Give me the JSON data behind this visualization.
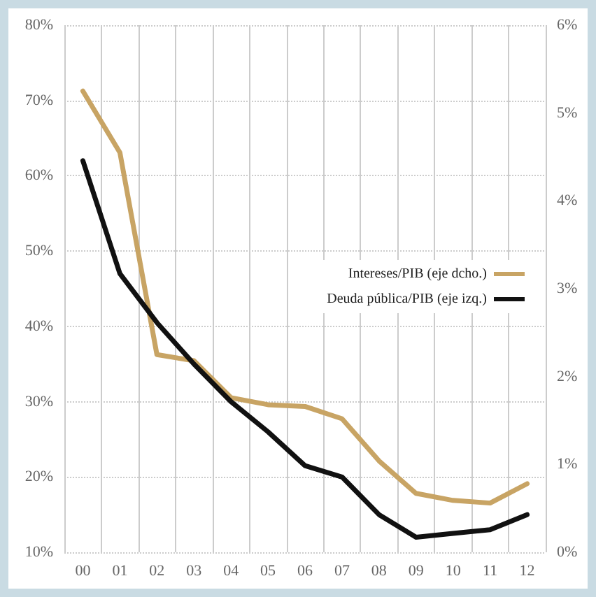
{
  "chart_data": {
    "type": "line",
    "categories": [
      "00",
      "01",
      "02",
      "03",
      "04",
      "05",
      "06",
      "07",
      "08",
      "09",
      "10",
      "11",
      "12"
    ],
    "series": [
      {
        "name": "Intereses/PIB (eje dcho.)",
        "color": "#c8a464",
        "axis": "y2",
        "values": [
          5.25,
          4.55,
          2.25,
          2.18,
          1.76,
          1.68,
          1.66,
          1.52,
          1.04,
          0.67,
          0.59,
          0.56,
          0.78
        ]
      },
      {
        "name": "Deuda pública/PIB (eje izq.)",
        "color": "#111111",
        "values": [
          62,
          47,
          40.5,
          35,
          30,
          26,
          21.5,
          20,
          15,
          12,
          12.5,
          13,
          15
        ]
      }
    ],
    "ylim": [
      10,
      80
    ],
    "yticks": [
      {
        "value": 10,
        "label": "10%"
      },
      {
        "value": 20,
        "label": "20%"
      },
      {
        "value": 30,
        "label": "30%"
      },
      {
        "value": 40,
        "label": "40%"
      },
      {
        "value": 50,
        "label": "50%"
      },
      {
        "value": 60,
        "label": "60%"
      },
      {
        "value": 70,
        "label": "70%"
      },
      {
        "value": 80,
        "label": "80%"
      }
    ],
    "y2lim": [
      0,
      6
    ],
    "y2ticks": [
      {
        "value": 0,
        "label": "0%"
      },
      {
        "value": 1,
        "label": "1%"
      },
      {
        "value": 2,
        "label": "2%"
      },
      {
        "value": 3,
        "label": "3%"
      },
      {
        "value": 4,
        "label": "4%"
      },
      {
        "value": 5,
        "label": "5%"
      },
      {
        "value": 6,
        "label": "6%"
      }
    ],
    "grid": true,
    "legend": "right",
    "marker": "none",
    "line_style": "solid"
  }
}
